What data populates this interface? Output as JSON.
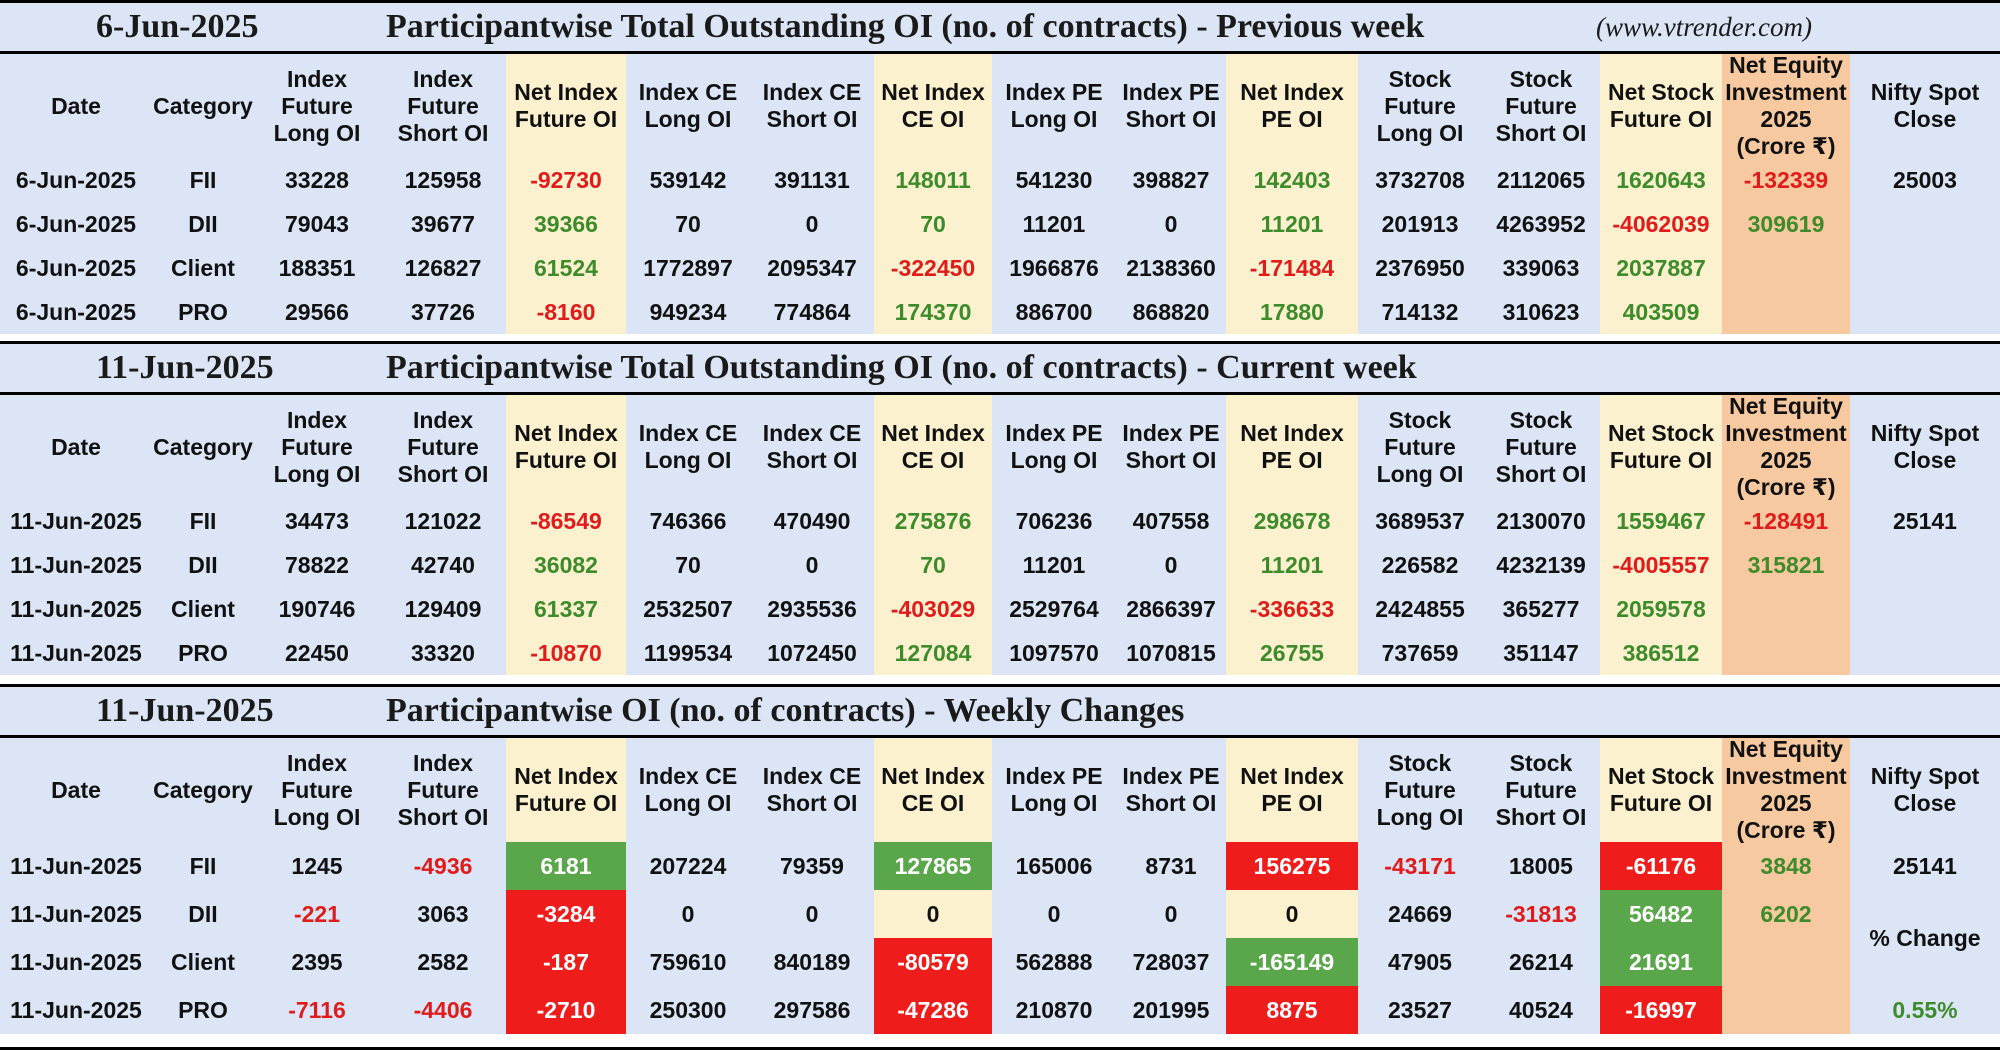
{
  "site": "(www.vtrender.com)",
  "headers": [
    [
      "Date"
    ],
    [
      "Category"
    ],
    [
      "Index",
      "Future",
      "Long OI"
    ],
    [
      "Index",
      "Future",
      "Short OI"
    ],
    [
      "Net Index",
      "Future OI"
    ],
    [
      "Index CE",
      "Long OI"
    ],
    [
      "Index CE",
      "Short OI"
    ],
    [
      "Net Index",
      "CE OI"
    ],
    [
      "Index PE",
      "Long OI"
    ],
    [
      "Index PE",
      "Short OI"
    ],
    [
      "Net Index",
      "PE OI"
    ],
    [
      "Stock",
      "Future",
      "Long OI"
    ],
    [
      "Stock",
      "Future",
      "Short OI"
    ],
    [
      "Net Stock",
      "Future OI"
    ],
    [
      "Net Equity",
      "Investment",
      "2025",
      "(Crore ₹)"
    ],
    [
      "Nifty Spot",
      "Close"
    ]
  ],
  "sections": [
    {
      "date": "6-Jun-2025",
      "title": "Participantwise Total Outstanding OI (no. of contracts) - Previous week",
      "rows": [
        [
          "6-Jun-2025",
          "FII",
          "33228",
          "125958",
          "-92730",
          "539142",
          "391131",
          "148011",
          "541230",
          "398827",
          "142403",
          "3732708",
          "2112065",
          "1620643",
          "-132339",
          "25003"
        ],
        [
          "6-Jun-2025",
          "DII",
          "79043",
          "39677",
          "39366",
          "70",
          "0",
          "70",
          "11201",
          "0",
          "11201",
          "201913",
          "4263952",
          "-4062039",
          "309619",
          ""
        ],
        [
          "6-Jun-2025",
          "Client",
          "188351",
          "126827",
          "61524",
          "1772897",
          "2095347",
          "-322450",
          "1966876",
          "2138360",
          "-171484",
          "2376950",
          "339063",
          "2037887",
          "",
          ""
        ],
        [
          "6-Jun-2025",
          "PRO",
          "29566",
          "37726",
          "-8160",
          "949234",
          "774864",
          "174370",
          "886700",
          "868820",
          "17880",
          "714132",
          "310623",
          "403509",
          "",
          ""
        ]
      ]
    },
    {
      "date": "11-Jun-2025",
      "title": "Participantwise Total Outstanding OI (no. of contracts) - Current week",
      "rows": [
        [
          "11-Jun-2025",
          "FII",
          "34473",
          "121022",
          "-86549",
          "746366",
          "470490",
          "275876",
          "706236",
          "407558",
          "298678",
          "3689537",
          "2130070",
          "1559467",
          "-128491",
          "25141"
        ],
        [
          "11-Jun-2025",
          "DII",
          "78822",
          "42740",
          "36082",
          "70",
          "0",
          "70",
          "11201",
          "0",
          "11201",
          "226582",
          "4232139",
          "-4005557",
          "315821",
          ""
        ],
        [
          "11-Jun-2025",
          "Client",
          "190746",
          "129409",
          "61337",
          "2532507",
          "2935536",
          "-403029",
          "2529764",
          "2866397",
          "-336633",
          "2424855",
          "365277",
          "2059578",
          "",
          ""
        ],
        [
          "11-Jun-2025",
          "PRO",
          "22450",
          "33320",
          "-10870",
          "1199534",
          "1072450",
          "127084",
          "1097570",
          "1070815",
          "26755",
          "737659",
          "351147",
          "386512",
          "",
          ""
        ]
      ]
    },
    {
      "date": "11-Jun-2025",
      "title": "Participantwise OI (no. of contracts) - Weekly Changes",
      "rows": [
        [
          "11-Jun-2025",
          "FII",
          "1245",
          "-4936",
          "6181",
          "207224",
          "79359",
          "127865",
          "165006",
          "8731",
          "156275",
          "-43171",
          "18005",
          "-61176",
          "3848",
          "25141"
        ],
        [
          "11-Jun-2025",
          "DII",
          "-221",
          "3063",
          "-3284",
          "0",
          "0",
          "0",
          "0",
          "0",
          "0",
          "24669",
          "-31813",
          "56482",
          "6202",
          ""
        ],
        [
          "11-Jun-2025",
          "Client",
          "2395",
          "2582",
          "-187",
          "759610",
          "840189",
          "-80579",
          "562888",
          "728037",
          "-165149",
          "47905",
          "26214",
          "21691",
          "",
          ""
        ],
        [
          "11-Jun-2025",
          "PRO",
          "-7116",
          "-4406",
          "-2710",
          "250300",
          "297586",
          "-47286",
          "210870",
          "201995",
          "8875",
          "23527",
          "40524",
          "-16997",
          "",
          ""
        ]
      ],
      "extra": {
        "pct_change_label": "% Change",
        "pct_change_value": "0.55%"
      }
    }
  ],
  "colors": {
    "header_bg": "#dbe5f5",
    "net_col_bg": "#fbf1cf",
    "equity_col_bg": "#f7c9a0",
    "positive": "#3d8b2a",
    "negative": "#e01b1b",
    "fill_green": "#5aa64b",
    "fill_red": "#ef1c1c"
  },
  "chart_data": {
    "type": "table",
    "columns": [
      "Date",
      "Category",
      "Index Future Long OI",
      "Index Future Short OI",
      "Net Index Future OI",
      "Index CE Long OI",
      "Index CE Short OI",
      "Net Index CE OI",
      "Index PE Long OI",
      "Index PE Short OI",
      "Net Index PE OI",
      "Stock Future Long OI",
      "Stock Future Short OI",
      "Net Stock Future OI",
      "Net Equity Investment 2025 (Crore ₹)",
      "Nifty Spot Close"
    ],
    "tables": [
      {
        "title": "Participantwise Total Outstanding OI (no. of contracts) - Previous week",
        "date": "6-Jun-2025",
        "rows": [
          [
            "6-Jun-2025",
            "FII",
            33228,
            125958,
            -92730,
            539142,
            391131,
            148011,
            541230,
            398827,
            142403,
            3732708,
            2112065,
            1620643,
            -132339,
            25003
          ],
          [
            "6-Jun-2025",
            "DII",
            79043,
            39677,
            39366,
            70,
            0,
            70,
            11201,
            0,
            11201,
            201913,
            4263952,
            -4062039,
            309619,
            null
          ],
          [
            "6-Jun-2025",
            "Client",
            188351,
            126827,
            61524,
            1772897,
            2095347,
            -322450,
            1966876,
            2138360,
            -171484,
            2376950,
            339063,
            2037887,
            null,
            null
          ],
          [
            "6-Jun-2025",
            "PRO",
            29566,
            37726,
            -8160,
            949234,
            774864,
            174370,
            886700,
            868820,
            17880,
            714132,
            310623,
            403509,
            null,
            null
          ]
        ]
      },
      {
        "title": "Participantwise Total Outstanding OI (no. of contracts) - Current week",
        "date": "11-Jun-2025",
        "rows": [
          [
            "11-Jun-2025",
            "FII",
            34473,
            121022,
            -86549,
            746366,
            470490,
            275876,
            706236,
            407558,
            298678,
            3689537,
            2130070,
            1559467,
            -128491,
            25141
          ],
          [
            "11-Jun-2025",
            "DII",
            78822,
            42740,
            36082,
            70,
            0,
            70,
            11201,
            0,
            11201,
            226582,
            4232139,
            -4005557,
            315821,
            null
          ],
          [
            "11-Jun-2025",
            "Client",
            190746,
            129409,
            61337,
            2532507,
            2935536,
            -403029,
            2529764,
            2866397,
            -336633,
            2424855,
            365277,
            2059578,
            null,
            null
          ],
          [
            "11-Jun-2025",
            "PRO",
            22450,
            33320,
            -10870,
            1199534,
            1072450,
            127084,
            1097570,
            1070815,
            26755,
            737659,
            351147,
            386512,
            null,
            null
          ]
        ]
      },
      {
        "title": "Participantwise OI (no. of contracts) - Weekly Changes",
        "date": "11-Jun-2025",
        "rows": [
          [
            "11-Jun-2025",
            "FII",
            1245,
            -4936,
            6181,
            207224,
            79359,
            127865,
            165006,
            8731,
            156275,
            -43171,
            18005,
            -61176,
            3848,
            25141
          ],
          [
            "11-Jun-2025",
            "DII",
            -221,
            3063,
            -3284,
            0,
            0,
            0,
            0,
            0,
            0,
            24669,
            -31813,
            56482,
            6202,
            null
          ],
          [
            "11-Jun-2025",
            "Client",
            2395,
            2582,
            -187,
            759610,
            840189,
            -80579,
            562888,
            728037,
            -165149,
            47905,
            26214,
            21691,
            null,
            null
          ],
          [
            "11-Jun-2025",
            "PRO",
            -7116,
            -4406,
            -2710,
            250300,
            297586,
            -47286,
            210870,
            201995,
            8875,
            23527,
            40524,
            -16997,
            null,
            null
          ]
        ],
        "nifty_pct_change": "0.55%"
      }
    ]
  }
}
